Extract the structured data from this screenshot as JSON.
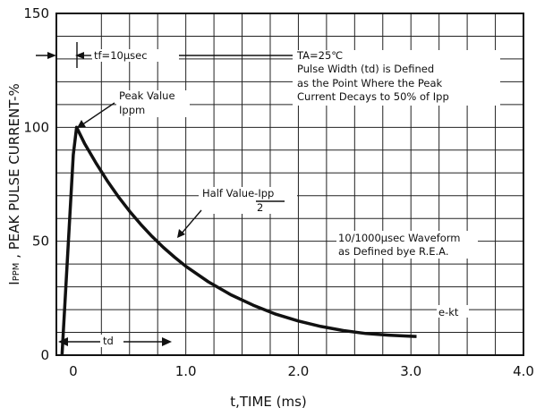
{
  "chart_data": {
    "type": "line",
    "title": "",
    "xlabel": "t,TIME (ms)",
    "ylabel": "IPPM , PEAK PULSE CURRENT-%",
    "ylabel_sub": "PPM",
    "ylabel_rest": " , PEAK PULSE CURRENT-%",
    "xlim": [
      -0.15,
      4.0
    ],
    "ylim": [
      0,
      150
    ],
    "x_ticks": [
      0,
      1.0,
      2.0,
      3.0,
      4.0
    ],
    "x_tick_labels": [
      "0",
      "1.0",
      "2.0",
      "3.0",
      "4.0"
    ],
    "y_ticks": [
      0,
      50,
      100,
      150
    ],
    "y_tick_labels": [
      "0",
      "50",
      "100",
      "150"
    ],
    "grid": true,
    "grid_x_step": 0.25,
    "grid_y_step": 10,
    "series": [
      {
        "name": "",
        "color": "#111111",
        "points": [
          [
            -0.1,
            0
          ],
          [
            0.0,
            88
          ],
          [
            0.03,
            100
          ],
          [
            0.1,
            93
          ],
          [
            0.2,
            84.5
          ],
          [
            0.3,
            76.7
          ],
          [
            0.4,
            69.6
          ],
          [
            0.5,
            63.2
          ],
          [
            0.6,
            57.4
          ],
          [
            0.7,
            52.1
          ],
          [
            0.8,
            47.3
          ],
          [
            0.9,
            43.0
          ],
          [
            1.0,
            39.0
          ],
          [
            1.2,
            32.2
          ],
          [
            1.4,
            26.5
          ],
          [
            1.6,
            21.9
          ],
          [
            1.8,
            18.0
          ],
          [
            2.0,
            15.0
          ],
          [
            2.2,
            12.6
          ],
          [
            2.4,
            10.8
          ],
          [
            2.6,
            9.5
          ],
          [
            2.8,
            8.8
          ],
          [
            3.0,
            8.3
          ],
          [
            3.05,
            8.2
          ]
        ]
      }
    ],
    "annotations": {
      "tf": "tf=10μsec",
      "ta": "TA=25℃",
      "pulse_width_lines": [
        "Pulse Width (td) is Defined",
        "as the Point Where the Peak",
        "Current Decays to 50% of Ipp"
      ],
      "peak_value_lines": [
        "Peak Value",
        "Ippm"
      ],
      "half_value": "Half Value-Ipp",
      "half_value_denominator": "2",
      "waveform_lines": [
        "10/1000μsec Waveform",
        "as Defined bye R.E.A."
      ],
      "ekt": "e-kt",
      "td": "td"
    }
  }
}
